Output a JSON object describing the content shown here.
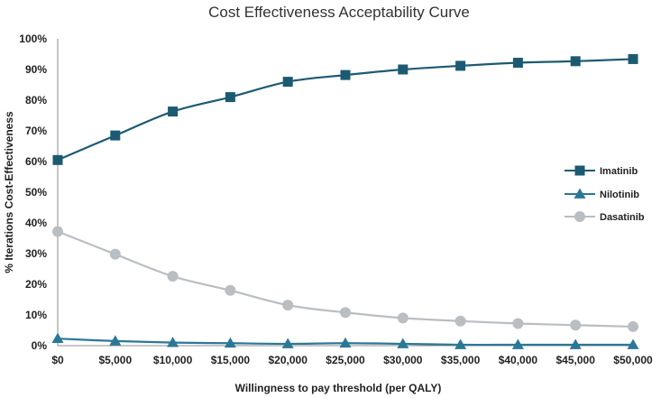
{
  "chart_data": {
    "type": "line",
    "title": "Cost Effectiveness Acceptability Curve",
    "xlabel": "Willingness to pay threshold (per QALY)",
    "ylabel": "% Iterations  Cost-Effectiveness",
    "x": [
      "$0",
      "$5,000",
      "$10,000",
      "$15,000",
      "$20,000",
      "$25,000",
      "$30,000",
      "$35,000",
      "$40,000",
      "$45,000",
      "$50,000"
    ],
    "y_ticks": [
      "0%",
      "10%",
      "20%",
      "30%",
      "40%",
      "50%",
      "60%",
      "70%",
      "80%",
      "90%",
      "100%"
    ],
    "ylim": [
      0,
      100
    ],
    "grid": false,
    "legend_position": "right",
    "series": [
      {
        "name": "Imatinib",
        "marker": "square",
        "color": "#1c5a72",
        "values": [
          60.5,
          68.5,
          76.3,
          81.0,
          86.0,
          88.2,
          90.0,
          91.2,
          92.2,
          92.7,
          93.4
        ]
      },
      {
        "name": "Nilotinib",
        "marker": "triangle",
        "color": "#2b7896",
        "values": [
          2.3,
          1.5,
          1.0,
          0.8,
          0.6,
          0.8,
          0.6,
          0.3,
          0.3,
          0.3,
          0.3
        ]
      },
      {
        "name": "Dasatinib",
        "marker": "circle",
        "color": "#b9bec3",
        "values": [
          37.2,
          29.8,
          22.6,
          18.0,
          13.2,
          10.8,
          9.0,
          8.0,
          7.2,
          6.7,
          6.2
        ]
      }
    ]
  }
}
